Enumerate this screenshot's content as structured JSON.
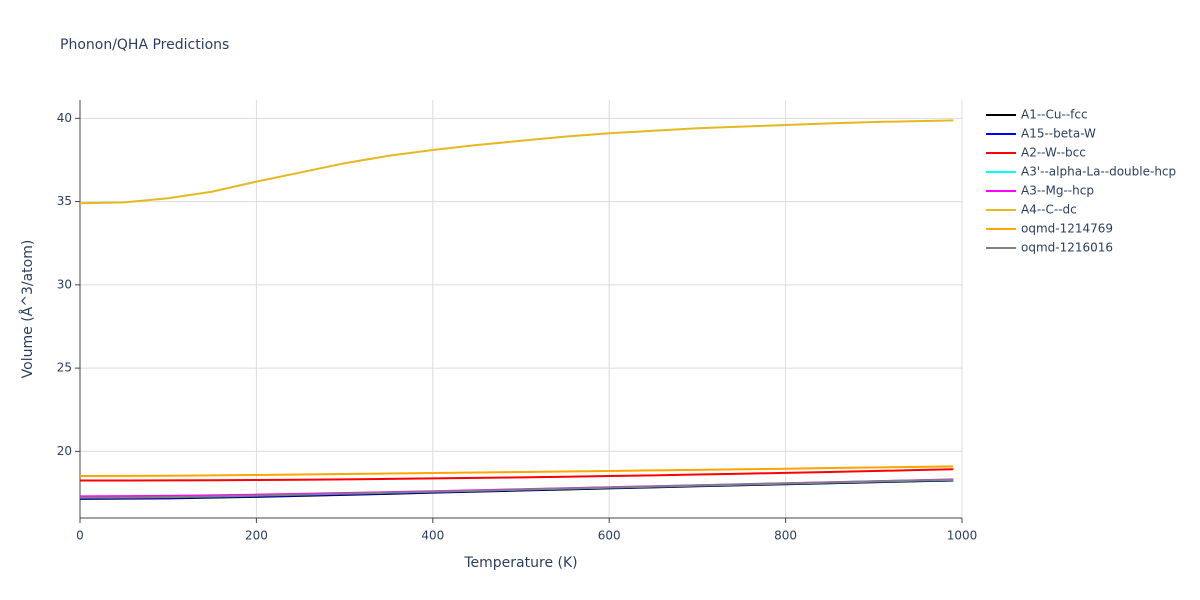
{
  "chart_data": {
    "type": "line",
    "title": "Phonon/QHA Predictions",
    "xlabel": "Temperature (K)",
    "ylabel": "Volume (Å^3/atom)",
    "x": [
      0,
      50,
      100,
      150,
      200,
      250,
      300,
      350,
      400,
      450,
      500,
      550,
      600,
      650,
      700,
      750,
      800,
      850,
      900,
      950,
      990
    ],
    "xlim": [
      0,
      1000
    ],
    "ylim": [
      16,
      41.1
    ],
    "xticks": [
      0,
      200,
      400,
      600,
      800,
      1000
    ],
    "yticks": [
      20,
      25,
      30,
      35,
      40
    ],
    "grid": true,
    "legend": "right",
    "series": [
      {
        "name": "A1--Cu--fcc",
        "color": "#000000",
        "values": [
          17.15,
          17.16,
          17.18,
          17.22,
          17.27,
          17.33,
          17.39,
          17.45,
          17.52,
          17.58,
          17.65,
          17.71,
          17.78,
          17.84,
          17.91,
          17.97,
          18.03,
          18.09,
          18.15,
          18.21,
          18.25
        ]
      },
      {
        "name": "A15--beta-W",
        "color": "#0000ff",
        "values": [
          17.18,
          17.19,
          17.21,
          17.25,
          17.3,
          17.36,
          17.42,
          17.48,
          17.55,
          17.61,
          17.68,
          17.74,
          17.81,
          17.87,
          17.94,
          18.0,
          18.06,
          18.12,
          18.18,
          18.24,
          18.28
        ]
      },
      {
        "name": "A2--W--bcc",
        "color": "#ff0000",
        "values": [
          18.25,
          18.25,
          18.26,
          18.27,
          18.28,
          18.3,
          18.32,
          18.35,
          18.38,
          18.41,
          18.44,
          18.48,
          18.52,
          18.56,
          18.61,
          18.66,
          18.71,
          18.76,
          18.82,
          18.88,
          18.93
        ]
      },
      {
        "name": "A3'--alpha-La--double-hcp",
        "color": "#00ffff",
        "values": [
          17.28,
          17.29,
          17.31,
          17.34,
          17.38,
          17.43,
          17.48,
          17.53,
          17.59,
          17.65,
          17.71,
          17.77,
          17.83,
          17.89,
          17.95,
          18.01,
          18.07,
          18.13,
          18.19,
          18.25,
          18.3
        ]
      },
      {
        "name": "A3--Mg--hcp",
        "color": "#ff00ff",
        "values": [
          17.3,
          17.31,
          17.33,
          17.36,
          17.4,
          17.45,
          17.5,
          17.55,
          17.61,
          17.67,
          17.73,
          17.79,
          17.85,
          17.91,
          17.97,
          18.03,
          18.09,
          18.15,
          18.21,
          18.27,
          18.32
        ]
      },
      {
        "name": "A4--C--dc",
        "color": "#e6b820",
        "values": [
          34.9,
          34.95,
          35.2,
          35.6,
          36.2,
          36.75,
          37.3,
          37.75,
          38.1,
          38.4,
          38.65,
          38.9,
          39.1,
          39.25,
          39.4,
          39.5,
          39.6,
          39.7,
          39.78,
          39.83,
          39.88
        ]
      },
      {
        "name": "oqmd-1214769",
        "color": "#ffa500",
        "values": [
          18.52,
          18.53,
          18.54,
          18.56,
          18.58,
          18.61,
          18.64,
          18.67,
          18.7,
          18.73,
          18.76,
          18.79,
          18.82,
          18.86,
          18.89,
          18.93,
          18.96,
          19.0,
          19.03,
          19.07,
          19.1
        ]
      },
      {
        "name": "oqmd-1216016",
        "color": "#808080",
        "values": [
          17.22,
          17.23,
          17.25,
          17.29,
          17.34,
          17.4,
          17.46,
          17.52,
          17.58,
          17.64,
          17.71,
          17.77,
          17.83,
          17.89,
          17.96,
          18.02,
          18.08,
          18.14,
          18.2,
          18.26,
          18.3
        ]
      }
    ]
  }
}
